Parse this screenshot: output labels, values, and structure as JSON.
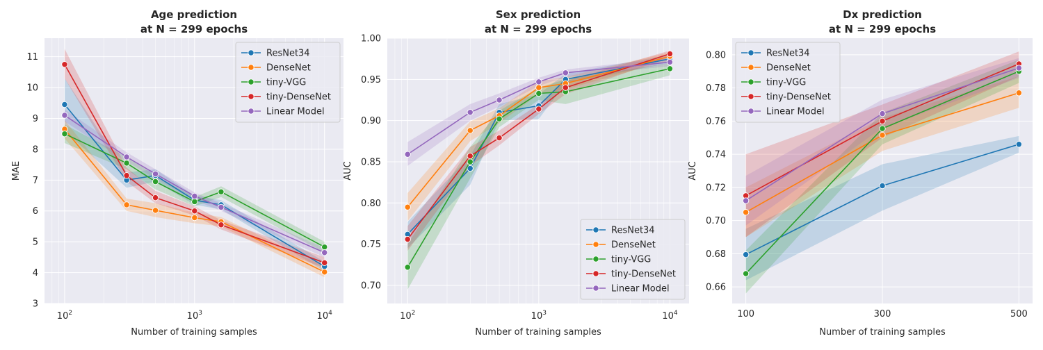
{
  "chart_data": [
    {
      "type": "line",
      "title_line1": "Age prediction",
      "title_line2": "at N = 299 epochs",
      "xlabel": "Number of training samples",
      "ylabel": "MAE",
      "xscale": "log",
      "xlim": [
        70,
        14000
      ],
      "ylim": [
        3,
        11.6
      ],
      "xticks": [
        {
          "value": 100,
          "base": "10",
          "exp": "2"
        },
        {
          "value": 1000,
          "base": "10",
          "exp": "3"
        },
        {
          "value": 10000,
          "base": "10",
          "exp": "4"
        }
      ],
      "yticks": [
        {
          "value": 3,
          "label": "3"
        },
        {
          "value": 4,
          "label": "4"
        },
        {
          "value": 5,
          "label": "5"
        },
        {
          "value": 6,
          "label": "6"
        },
        {
          "value": 7,
          "label": "7"
        },
        {
          "value": 8,
          "label": "8"
        },
        {
          "value": 9,
          "label": "9"
        },
        {
          "value": 10,
          "label": "10"
        },
        {
          "value": 11,
          "label": "11"
        }
      ],
      "legend_position": "top-right",
      "x": [
        100,
        300,
        500,
        1000,
        1600,
        10000
      ],
      "series": [
        {
          "name": "ResNet34",
          "color": "#1f77b4",
          "values": [
            9.45,
            7.0,
            7.15,
            6.35,
            6.2,
            4.2
          ],
          "lower": [
            8.6,
            6.75,
            6.95,
            6.2,
            6.05,
            4.05
          ],
          "upper": [
            10.3,
            7.25,
            7.35,
            6.5,
            6.35,
            4.35
          ]
        },
        {
          "name": "DenseNet",
          "color": "#ff7f0e",
          "values": [
            8.65,
            6.2,
            6.02,
            5.78,
            5.65,
            4.02
          ],
          "lower": [
            8.35,
            6.0,
            5.8,
            5.6,
            5.5,
            3.85
          ],
          "upper": [
            8.95,
            6.4,
            6.25,
            5.95,
            5.8,
            4.2
          ]
        },
        {
          "name": "tiny-VGG",
          "color": "#2ca02c",
          "values": [
            8.5,
            7.55,
            6.95,
            6.3,
            6.62,
            4.83
          ],
          "lower": [
            8.2,
            7.35,
            6.7,
            6.15,
            6.45,
            4.65
          ],
          "upper": [
            8.8,
            7.75,
            7.15,
            6.45,
            6.8,
            5.0
          ]
        },
        {
          "name": "tiny-DenseNet",
          "color": "#d62728",
          "values": [
            10.75,
            7.15,
            6.43,
            6.0,
            5.55,
            4.32
          ],
          "lower": [
            10.3,
            6.95,
            6.25,
            5.85,
            5.4,
            4.15
          ],
          "upper": [
            11.25,
            7.4,
            6.65,
            6.15,
            5.7,
            4.5
          ]
        },
        {
          "name": "Linear Model",
          "color": "#9467bd",
          "values": [
            9.1,
            7.75,
            7.2,
            6.48,
            6.12,
            4.65
          ],
          "lower": [
            8.9,
            7.6,
            7.05,
            6.35,
            6.0,
            4.5
          ],
          "upper": [
            9.3,
            7.9,
            7.35,
            6.6,
            6.25,
            4.8
          ]
        }
      ]
    },
    {
      "type": "line",
      "title_line1": "Sex prediction",
      "title_line2": "at N = 299 epochs",
      "xlabel": "Number of training samples",
      "ylabel": "AUC",
      "xscale": "log",
      "xlim": [
        70,
        14000
      ],
      "ylim": [
        0.678,
        1.0
      ],
      "xticks": [
        {
          "value": 100,
          "base": "10",
          "exp": "2"
        },
        {
          "value": 1000,
          "base": "10",
          "exp": "3"
        },
        {
          "value": 10000,
          "base": "10",
          "exp": "4"
        }
      ],
      "yticks": [
        {
          "value": 0.7,
          "label": "0.70"
        },
        {
          "value": 0.75,
          "label": "0.75"
        },
        {
          "value": 0.8,
          "label": "0.80"
        },
        {
          "value": 0.85,
          "label": "0.85"
        },
        {
          "value": 0.9,
          "label": "0.90"
        },
        {
          "value": 0.95,
          "label": "0.95"
        },
        {
          "value": 1.0,
          "label": "1.00"
        }
      ],
      "legend_position": "bottom-right",
      "x": [
        100,
        300,
        500,
        1000,
        1600,
        10000
      ],
      "series": [
        {
          "name": "ResNet34",
          "color": "#1f77b4",
          "values": [
            0.762,
            0.842,
            0.91,
            0.918,
            0.95,
            0.975
          ],
          "lower": [
            0.745,
            0.822,
            0.9,
            0.902,
            0.945,
            0.97
          ],
          "upper": [
            0.777,
            0.857,
            0.92,
            0.932,
            0.957,
            0.98
          ]
        },
        {
          "name": "DenseNet",
          "color": "#ff7f0e",
          "values": [
            0.795,
            0.888,
            0.906,
            0.94,
            0.945,
            0.978
          ],
          "lower": [
            0.778,
            0.875,
            0.897,
            0.932,
            0.938,
            0.973
          ],
          "upper": [
            0.812,
            0.899,
            0.915,
            0.948,
            0.953,
            0.983
          ]
        },
        {
          "name": "tiny-VGG",
          "color": "#2ca02c",
          "values": [
            0.722,
            0.85,
            0.902,
            0.933,
            0.935,
            0.963
          ],
          "lower": [
            0.695,
            0.83,
            0.892,
            0.925,
            0.92,
            0.955
          ],
          "upper": [
            0.75,
            0.868,
            0.912,
            0.94,
            0.95,
            0.97
          ]
        },
        {
          "name": "tiny-DenseNet",
          "color": "#d62728",
          "values": [
            0.756,
            0.857,
            0.879,
            0.914,
            0.94,
            0.981
          ],
          "lower": [
            0.742,
            0.845,
            0.87,
            0.908,
            0.932,
            0.977
          ],
          "upper": [
            0.772,
            0.868,
            0.888,
            0.92,
            0.948,
            0.985
          ]
        },
        {
          "name": "Linear Model",
          "color": "#9467bd",
          "values": [
            0.859,
            0.91,
            0.925,
            0.947,
            0.958,
            0.971
          ],
          "lower": [
            0.845,
            0.9,
            0.917,
            0.942,
            0.953,
            0.966
          ],
          "upper": [
            0.874,
            0.92,
            0.933,
            0.952,
            0.962,
            0.976
          ]
        }
      ]
    },
    {
      "type": "line",
      "title_line1": "Dx prediction",
      "title_line2": "at N = 299 epochs",
      "xlabel": "Number of training samples",
      "ylabel": "AUC",
      "xscale": "linear",
      "xlim": [
        80,
        520
      ],
      "ylim": [
        0.65,
        0.81
      ],
      "xticks": [
        {
          "value": 100,
          "label": "100"
        },
        {
          "value": 300,
          "label": "300"
        },
        {
          "value": 500,
          "label": "500"
        }
      ],
      "yticks": [
        {
          "value": 0.66,
          "label": "0.66"
        },
        {
          "value": 0.68,
          "label": "0.68"
        },
        {
          "value": 0.7,
          "label": "0.70"
        },
        {
          "value": 0.72,
          "label": "0.72"
        },
        {
          "value": 0.74,
          "label": "0.74"
        },
        {
          "value": 0.76,
          "label": "0.76"
        },
        {
          "value": 0.78,
          "label": "0.78"
        },
        {
          "value": 0.8,
          "label": "0.80"
        }
      ],
      "legend_position": "top-left",
      "x": [
        100,
        300,
        500
      ],
      "series": [
        {
          "name": "ResNet34",
          "color": "#1f77b4",
          "values": [
            0.6795,
            0.721,
            0.746
          ],
          "lower": [
            0.664,
            0.706,
            0.741
          ],
          "upper": [
            0.695,
            0.734,
            0.751
          ]
        },
        {
          "name": "DenseNet",
          "color": "#ff7f0e",
          "values": [
            0.705,
            0.7515,
            0.777
          ],
          "lower": [
            0.69,
            0.742,
            0.768
          ],
          "upper": [
            0.72,
            0.762,
            0.787
          ]
        },
        {
          "name": "tiny-VGG",
          "color": "#2ca02c",
          "values": [
            0.668,
            0.7555,
            0.79
          ],
          "lower": [
            0.656,
            0.746,
            0.783
          ],
          "upper": [
            0.682,
            0.765,
            0.797
          ]
        },
        {
          "name": "tiny-DenseNet",
          "color": "#d62728",
          "values": [
            0.715,
            0.76,
            0.7945
          ],
          "lower": [
            0.69,
            0.75,
            0.787
          ],
          "upper": [
            0.74,
            0.77,
            0.802
          ]
        },
        {
          "name": "Linear Model",
          "color": "#9467bd",
          "values": [
            0.712,
            0.7645,
            0.792
          ],
          "lower": [
            0.697,
            0.756,
            0.786
          ],
          "upper": [
            0.727,
            0.773,
            0.798
          ]
        }
      ]
    }
  ]
}
